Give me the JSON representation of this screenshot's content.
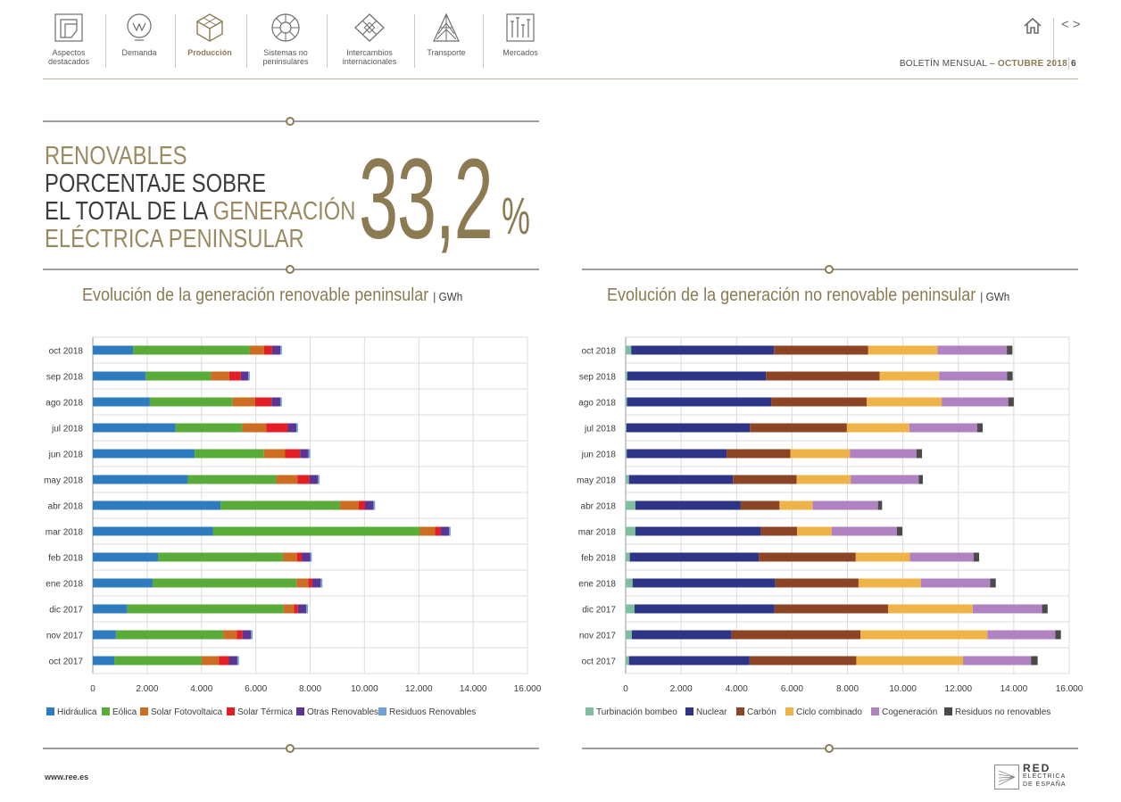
{
  "nav": {
    "items": [
      {
        "label1": "Aspectos",
        "label2": "destacados",
        "icon": "document-icon"
      },
      {
        "label1": "Demanda",
        "label2": "",
        "icon": "bulb-icon"
      },
      {
        "label1": "Producción",
        "label2": "",
        "icon": "cube-icon"
      },
      {
        "label1": "Sistemas no",
        "label2": "peninsulares",
        "icon": "wheel-icon"
      },
      {
        "label1": "Intercambios",
        "label2": "internacionales",
        "icon": "exchange-icon"
      },
      {
        "label1": "Transporte",
        "label2": "",
        "icon": "tower-icon"
      },
      {
        "label1": "Mercados",
        "label2": "",
        "icon": "market-icon"
      }
    ],
    "active_index": 2,
    "prev_glyph": "<",
    "next_glyph": ">"
  },
  "header": {
    "bulletin_label": "BOLETÍN MENSUAL",
    "separator": "–",
    "month": "OCTUBRE 2018",
    "page_number": "6"
  },
  "kpi": {
    "line1": "RENOVABLES",
    "line2": "PORCENTAJE SOBRE",
    "line3_a": "EL TOTAL DE LA ",
    "line3_b": "GENERACIÓN",
    "line4": "ELÉCTRICA PENINSULAR",
    "value": "33,2",
    "unit": "%"
  },
  "colors": {
    "gold": "#8b7a52",
    "rule": "#3c3c3c"
  },
  "chart_data": [
    {
      "type": "bar",
      "orientation": "horizontal",
      "stacked": true,
      "title": "Evolución de la generación renovable peninsular",
      "unit": "GWh",
      "categories": [
        "oct 2018",
        "sep 2018",
        "ago 2018",
        "jul 2018",
        "jun 2018",
        "may 2018",
        "abr 2018",
        "mar 2018",
        "feb 2018",
        "ene 2018",
        "dic 2017",
        "nov 2017",
        "oct 2017"
      ],
      "xlim": [
        0,
        16000
      ],
      "xticks": [
        0,
        2000,
        4000,
        6000,
        8000,
        10000,
        12000,
        14000,
        16000
      ],
      "xtick_labels": [
        "0",
        "2.000",
        "4.000",
        "6.000",
        "8.000",
        "10.000",
        "12.000",
        "14.000",
        "16.000"
      ],
      "grid": "vertical",
      "legend_position": "bottom",
      "series": [
        {
          "name": "Hidráulica",
          "color": "#2f7bbf",
          "values": [
            1480,
            1950,
            2100,
            3050,
            3750,
            3500,
            4700,
            4420,
            2400,
            2200,
            1270,
            850,
            790
          ]
        },
        {
          "name": "Eólica",
          "color": "#5aab39",
          "values": [
            4300,
            2400,
            3050,
            2450,
            2550,
            3250,
            4400,
            7620,
            4600,
            5300,
            5750,
            3950,
            3220
          ]
        },
        {
          "name": "Solar Fotovoltaica",
          "color": "#cc6d21",
          "values": [
            520,
            670,
            830,
            880,
            780,
            780,
            680,
            560,
            520,
            430,
            390,
            500,
            630
          ]
        },
        {
          "name": "Solar Térmica",
          "color": "#e31e24",
          "values": [
            300,
            430,
            600,
            800,
            550,
            450,
            240,
            200,
            170,
            150,
            140,
            210,
            370
          ]
        },
        {
          "name": "Otras Renovables",
          "color": "#5b3591",
          "values": [
            300,
            270,
            320,
            310,
            310,
            310,
            310,
            310,
            310,
            310,
            310,
            310,
            310
          ]
        },
        {
          "name": "Residuos Renovables",
          "color": "#6fa0d6",
          "values": [
            60,
            60,
            60,
            60,
            60,
            60,
            60,
            60,
            60,
            60,
            60,
            60,
            60
          ]
        }
      ]
    },
    {
      "type": "bar",
      "orientation": "horizontal",
      "stacked": true,
      "title": "Evolución de la generación no renovable peninsular",
      "unit": "GWh",
      "categories": [
        "oct 2018",
        "sep 2018",
        "ago 2018",
        "jul 2018",
        "jun 2018",
        "may 2018",
        "abr 2018",
        "mar 2018",
        "feb 2018",
        "ene 2018",
        "dic 2017",
        "nov 2017",
        "oct 2017"
      ],
      "xlim": [
        0,
        16000
      ],
      "xticks": [
        0,
        2000,
        4000,
        6000,
        8000,
        10000,
        12000,
        14000,
        16000
      ],
      "xtick_labels": [
        "0",
        "2.000",
        "4.000",
        "6.000",
        "8.000",
        "10.000",
        "12.000",
        "14.000",
        "16.000"
      ],
      "grid": "vertical",
      "legend_position": "bottom",
      "series": [
        {
          "name": "Turbinación bombeo",
          "color": "#7fbf9f",
          "values": [
            200,
            60,
            50,
            30,
            40,
            120,
            350,
            350,
            150,
            250,
            320,
            220,
            120
          ]
        },
        {
          "name": "Nuclear",
          "color": "#2e3586",
          "values": [
            5150,
            5000,
            5200,
            4450,
            3600,
            3750,
            3800,
            4530,
            4650,
            5150,
            5050,
            3600,
            4350
          ]
        },
        {
          "name": "Carbón",
          "color": "#8b4424",
          "values": [
            3400,
            4100,
            3450,
            3500,
            2300,
            2300,
            1400,
            1300,
            3500,
            3000,
            4100,
            4650,
            3850
          ]
        },
        {
          "name": "Ciclo combinado",
          "color": "#eeb449",
          "values": [
            2500,
            2150,
            2700,
            2250,
            2150,
            1950,
            1200,
            1250,
            1950,
            2250,
            3050,
            4580,
            3850
          ]
        },
        {
          "name": "Cogeneración",
          "color": "#b182c2",
          "values": [
            2500,
            2450,
            2400,
            2450,
            2400,
            2450,
            2350,
            2350,
            2300,
            2500,
            2500,
            2450,
            2450
          ]
        },
        {
          "name": "Residuos no renovables",
          "color": "#4a4a4a",
          "values": [
            200,
            200,
            200,
            200,
            200,
            150,
            150,
            200,
            200,
            200,
            200,
            200,
            240
          ]
        }
      ]
    }
  ],
  "footer": {
    "url": "www.ree.es",
    "logo_line1": "RED",
    "logo_line2": "ELÉCTRICA",
    "logo_line3": "DE ESPAÑA"
  }
}
